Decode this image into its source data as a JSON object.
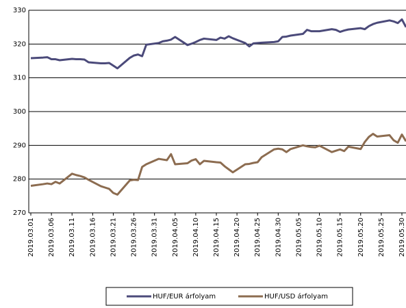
{
  "chart_data": {
    "type": "line",
    "x": [
      "2019.03.01",
      "2019.03.04",
      "2019.03.05",
      "2019.03.06",
      "2019.03.07",
      "2019.03.08",
      "2019.03.11",
      "2019.03.12",
      "2019.03.13",
      "2019.03.14",
      "2019.03.15",
      "2019.03.18",
      "2019.03.19",
      "2019.03.20",
      "2019.03.21",
      "2019.03.22",
      "2019.03.25",
      "2019.03.26",
      "2019.03.27",
      "2019.03.28",
      "2019.03.29",
      "2019.04.01",
      "2019.04.02",
      "2019.04.03",
      "2019.04.04",
      "2019.04.05",
      "2019.04.08",
      "2019.04.09",
      "2019.04.10",
      "2019.04.11",
      "2019.04.12",
      "2019.04.15",
      "2019.04.16",
      "2019.04.17",
      "2019.04.18",
      "2019.04.19",
      "2019.04.22",
      "2019.04.23",
      "2019.04.24",
      "2019.04.25",
      "2019.04.26",
      "2019.04.29",
      "2019.04.30",
      "2019.05.01",
      "2019.05.02",
      "2019.05.03",
      "2019.05.06",
      "2019.05.07",
      "2019.05.08",
      "2019.05.09",
      "2019.05.10",
      "2019.05.13",
      "2019.05.14",
      "2019.05.15",
      "2019.05.16",
      "2019.05.17",
      "2019.05.20",
      "2019.05.21",
      "2019.05.22",
      "2019.05.23",
      "2019.05.24",
      "2019.05.27",
      "2019.05.28",
      "2019.05.29",
      "2019.05.30",
      "2019.05.31"
    ],
    "series": [
      {
        "name": "HUF/EUR árfolyam",
        "color": "#4b4a7a",
        "values": [
          315.8,
          316.0,
          316.1,
          315.5,
          315.5,
          315.2,
          315.6,
          315.5,
          315.5,
          315.4,
          314.6,
          314.3,
          314.3,
          314.4,
          313.6,
          312.8,
          315.9,
          316.6,
          316.9,
          316.4,
          319.8,
          320.3,
          320.8,
          321.0,
          321.3,
          322.1,
          319.7,
          320.1,
          320.6,
          321.2,
          321.6,
          321.2,
          321.9,
          321.6,
          322.3,
          321.7,
          320.3,
          319.3,
          320.2,
          320.3,
          320.4,
          320.6,
          320.8,
          322.1,
          322.2,
          322.5,
          323.0,
          324.2,
          323.8,
          323.8,
          323.8,
          324.4,
          324.2,
          323.6,
          324.0,
          324.3,
          324.7,
          324.4,
          325.3,
          325.9,
          326.3,
          327.0,
          326.7,
          326.2,
          327.3,
          325.0
        ]
      },
      {
        "name": "HUF/USD árfolyam",
        "color": "#8c6c50",
        "values": [
          278.0,
          278.5,
          278.7,
          278.5,
          279.2,
          278.7,
          281.6,
          281.2,
          280.9,
          280.5,
          279.8,
          277.9,
          277.5,
          277.1,
          275.9,
          275.4,
          279.6,
          279.8,
          279.7,
          283.6,
          284.4,
          286.0,
          285.8,
          285.6,
          287.4,
          284.4,
          284.7,
          285.5,
          285.9,
          284.4,
          285.4,
          285.0,
          284.9,
          283.8,
          282.9,
          282.0,
          284.4,
          284.5,
          284.8,
          285.0,
          286.5,
          288.8,
          289.0,
          288.8,
          288.0,
          288.9,
          290.0,
          289.7,
          289.5,
          289.4,
          289.9,
          288.0,
          288.4,
          288.8,
          288.3,
          289.6,
          288.9,
          291.0,
          292.5,
          293.4,
          292.6,
          293.0,
          291.5,
          290.8,
          293.2,
          291.2
        ]
      }
    ],
    "xticks": [
      "2019.03.01",
      "2019.03.06",
      "2019.03.11",
      "2019.03.16",
      "2019.03.21",
      "2019.03.26",
      "2019.03.31",
      "2019.04.05",
      "2019.04.10",
      "2019.04.15",
      "2019.04.20",
      "2019.04.25",
      "2019.04.30",
      "2019.05.05",
      "2019.05.10",
      "2019.05.15",
      "2019.05.20",
      "2019.05.25",
      "2019.05.30"
    ],
    "ylim": [
      270,
      330
    ],
    "yticks": [
      270,
      280,
      290,
      300,
      310,
      320,
      330
    ],
    "grid": true,
    "legend": "bottom"
  }
}
